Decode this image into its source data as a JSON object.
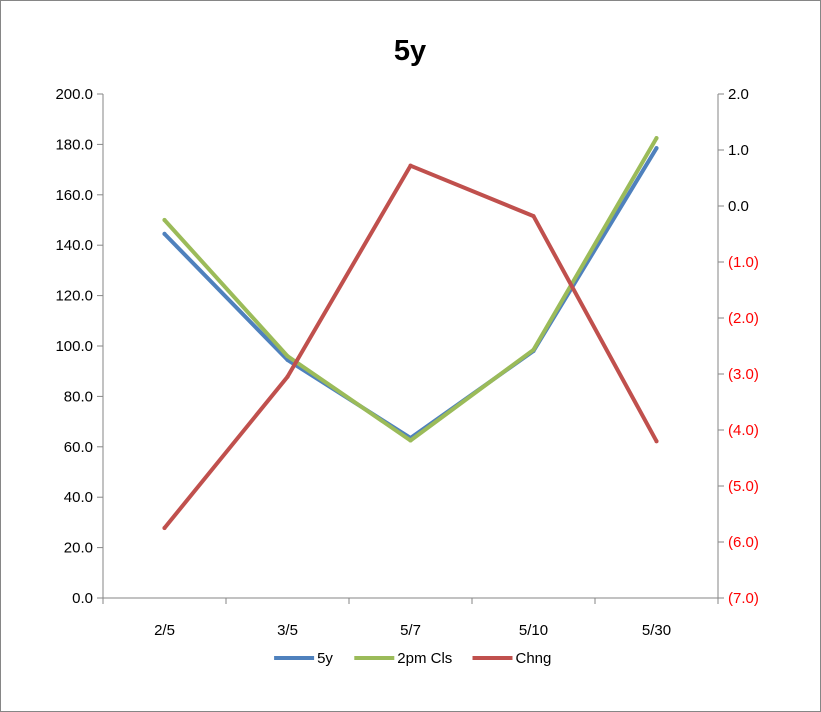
{
  "chart_data": {
    "type": "line",
    "title": "5y",
    "categories": [
      "2/5",
      "3/5",
      "5/7",
      "5/10",
      "5/30"
    ],
    "y_left": {
      "min": 0,
      "max": 200,
      "step": 20,
      "tick_labels": [
        "0.0",
        "20.0",
        "40.0",
        "60.0",
        "80.0",
        "100.0",
        "120.0",
        "140.0",
        "160.0",
        "180.0",
        "200.0"
      ]
    },
    "y_right": {
      "min": -7,
      "max": 2,
      "step": 1,
      "tick_labels": [
        "(7.0)",
        "(6.0)",
        "(5.0)",
        "(4.0)",
        "(3.0)",
        "(2.0)",
        "(1.0)",
        "0.0",
        "1.0",
        "2.0"
      ],
      "negative_color": "#ff0000",
      "positive_color": "#000000"
    },
    "series": [
      {
        "name": "5y",
        "axis": "left",
        "color": "#4f81bd",
        "values": [
          144.5,
          94.5,
          63.5,
          98.0,
          178.5
        ]
      },
      {
        "name": "2pm Cls",
        "axis": "left",
        "color": "#9bbb59",
        "values": [
          150.0,
          96.0,
          62.5,
          98.5,
          182.5
        ]
      },
      {
        "name": "Chng",
        "axis": "right",
        "color": "#c0504d",
        "values": [
          -5.75,
          -3.05,
          0.72,
          -0.18,
          -4.2
        ]
      }
    ],
    "legend_position": "bottom",
    "grid": false
  }
}
